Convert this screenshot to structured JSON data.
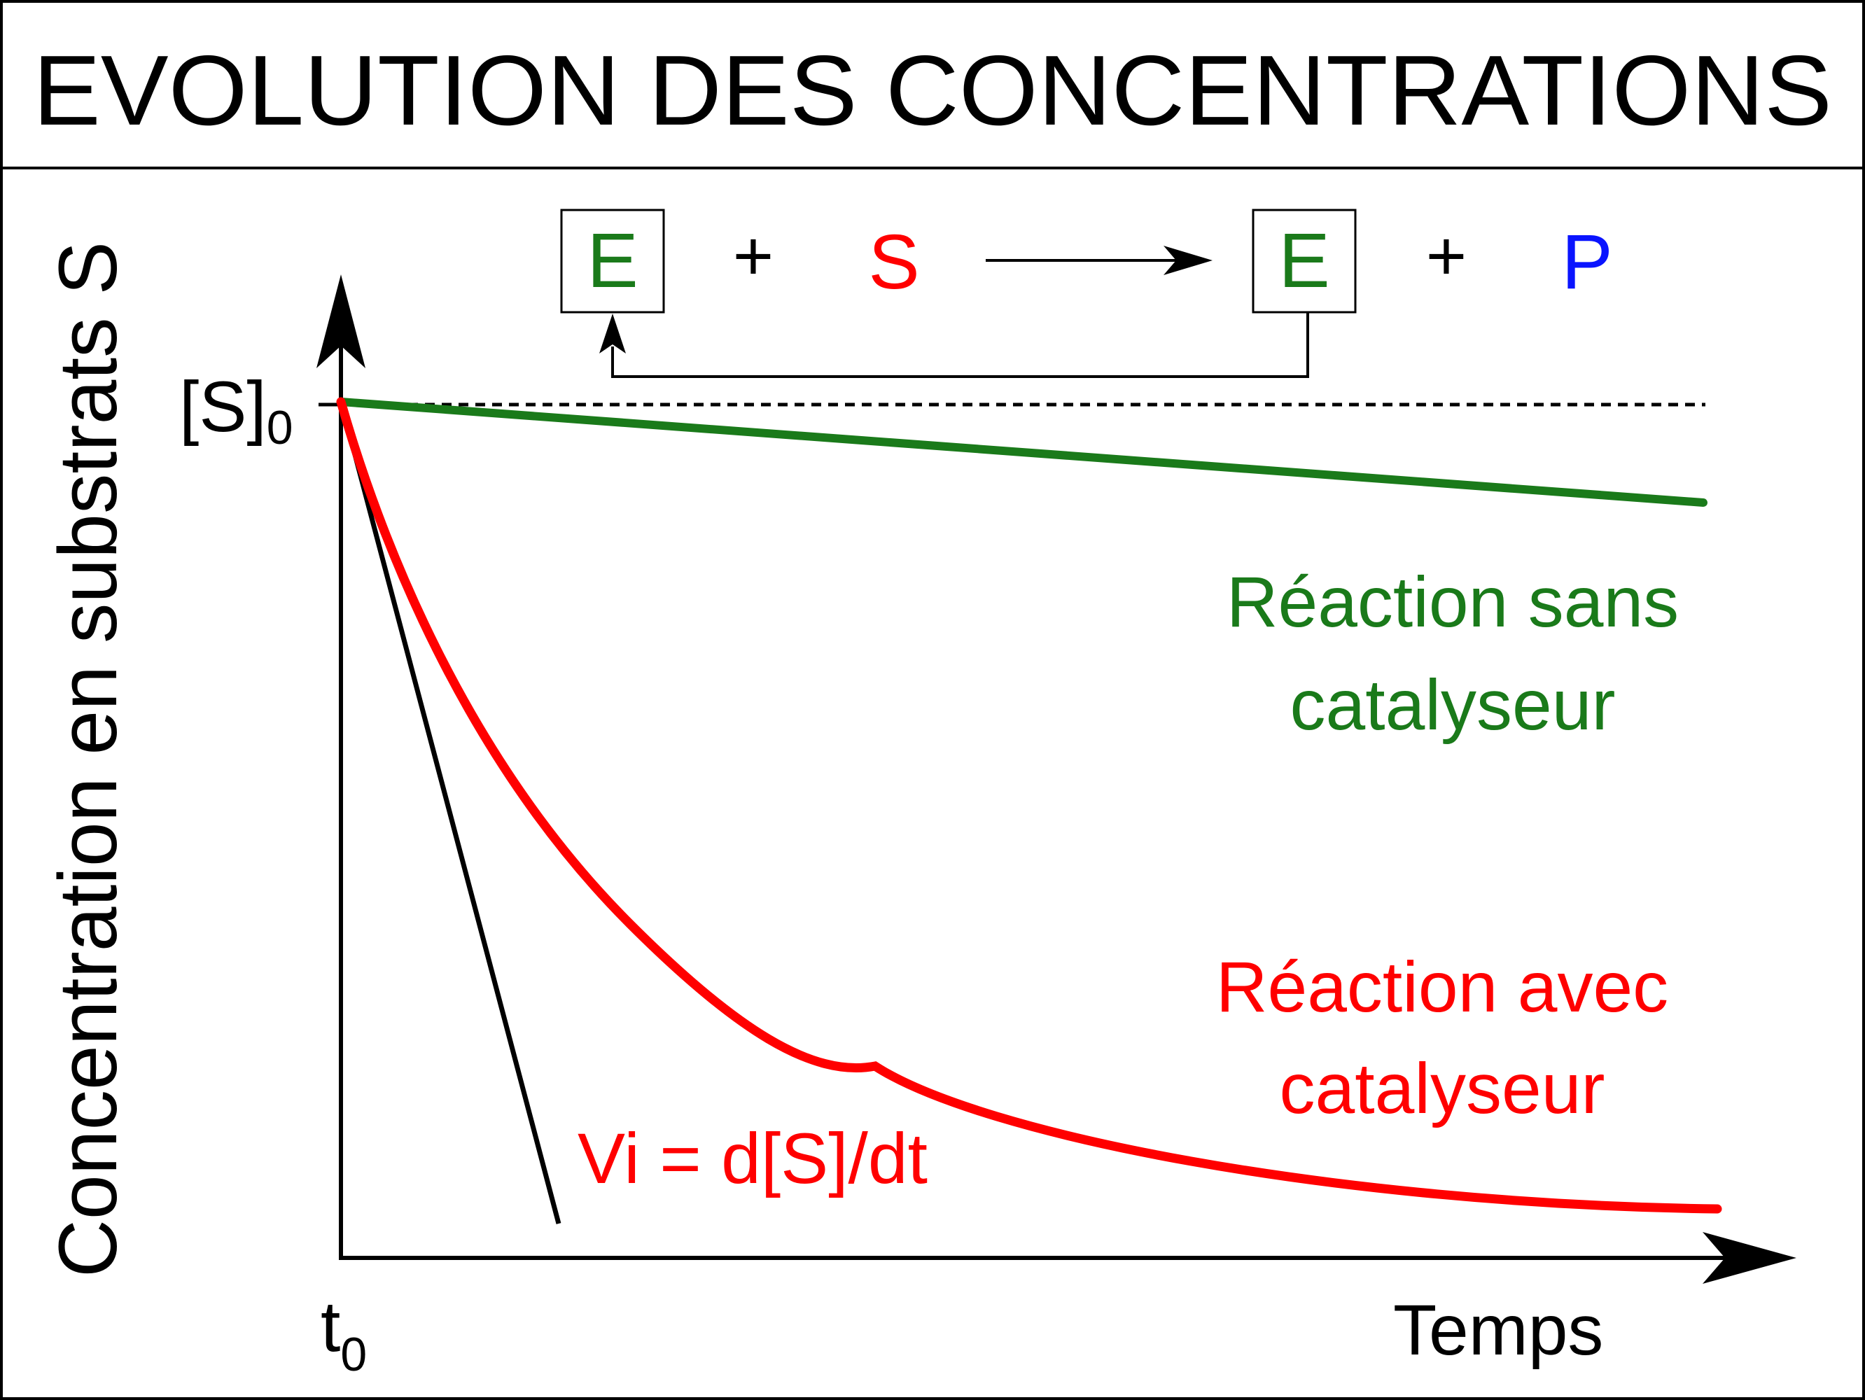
{
  "title": "EVOLUTION DES CONCENTRATIONS",
  "equation": {
    "enzyme": "E",
    "plus": "+",
    "substrate": "S",
    "product": "P"
  },
  "axes": {
    "y_label": "Concentration en substrats S",
    "y_tick": "[S]",
    "y_tick_sub": "0",
    "x_label": "Temps",
    "x_tick": "t",
    "x_tick_sub": "0"
  },
  "annotations": {
    "uncatalyzed_line1": "Réaction sans",
    "uncatalyzed_line2": "catalyseur",
    "catalyzed_line1": "Réaction avec",
    "catalyzed_line2": "catalyseur",
    "initial_rate": "Vi = d[S]/dt"
  },
  "colors": {
    "enzyme": "#1a7a1a",
    "substrate": "#ff0000",
    "product": "#0a14ff",
    "uncatalyzed_curve": "#1a7a1a",
    "catalyzed_curve": "#ff0000",
    "axes": "#000000"
  }
}
